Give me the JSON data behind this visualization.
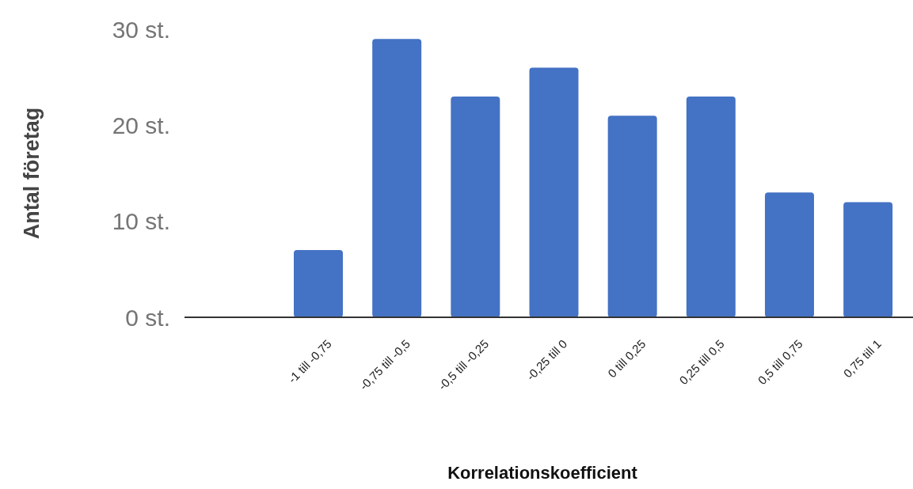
{
  "chart_data": {
    "type": "bar",
    "xlabel": "Korrelationskoefficient",
    "ylabel": "Antal företag",
    "categories": [
      null,
      "-1 till -0,75",
      "-0,75 till -0,5",
      "-0,5 till -0,25",
      "-0,25 till 0",
      "0 till 0,25",
      "0,25 till 0,5",
      "0,5 till 0,75",
      "0,75 till 1"
    ],
    "values": [
      null,
      7,
      29,
      23,
      26,
      21,
      23,
      13,
      12
    ],
    "color": "#4472c4",
    "ylim": [
      0,
      30
    ],
    "yticks": [
      {
        "value": 0,
        "label": "0 st."
      },
      {
        "value": 10,
        "label": "10 st."
      },
      {
        "value": 20,
        "label": "20 st."
      },
      {
        "value": 30,
        "label": "30 st."
      }
    ]
  }
}
